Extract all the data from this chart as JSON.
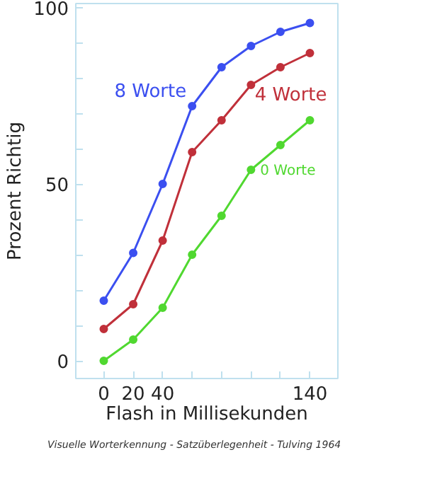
{
  "chart_data": {
    "type": "line",
    "xlabel": "Flash in Millisekunden",
    "ylabel": "Prozent Richtig",
    "x": [
      0,
      20,
      40,
      60,
      80,
      100,
      120,
      140
    ],
    "series": [
      {
        "name": "8 Worte",
        "color": "#3b4ff0",
        "values": [
          17,
          30.5,
          50,
          72,
          83,
          89,
          93,
          95.5
        ]
      },
      {
        "name": "4 Worte",
        "color": "#c0303a",
        "values": [
          9,
          16,
          34,
          59,
          68,
          78,
          83,
          87
        ]
      },
      {
        "name": "0 Worte",
        "color": "#50d830",
        "values": [
          0,
          6,
          15,
          30,
          41,
          54,
          61,
          68
        ]
      }
    ],
    "xlim": [
      -19,
      159
    ],
    "ylim": [
      -5,
      101
    ],
    "xticks": [
      0,
      20,
      40,
      {
        "value": 60,
        "label": null
      },
      {
        "value": 80,
        "label": null
      },
      {
        "value": 100,
        "label": null
      },
      {
        "value": 120,
        "label": null
      },
      140
    ],
    "yticks": [
      0,
      {
        "value": 10,
        "label": null
      },
      {
        "value": 20,
        "label": null
      },
      {
        "value": 30,
        "label": null
      },
      {
        "value": 40,
        "label": null
      },
      50,
      {
        "value": 60,
        "label": null
      },
      {
        "value": 70,
        "label": null
      },
      {
        "value": 80,
        "label": null
      },
      {
        "value": 90,
        "label": null
      },
      100
    ],
    "grid": false,
    "marker": "circle",
    "line_style": "solid",
    "annotations": [
      "Visuelle Worterkennung - Satzüberlegenheit - Tulving 1964"
    ]
  }
}
